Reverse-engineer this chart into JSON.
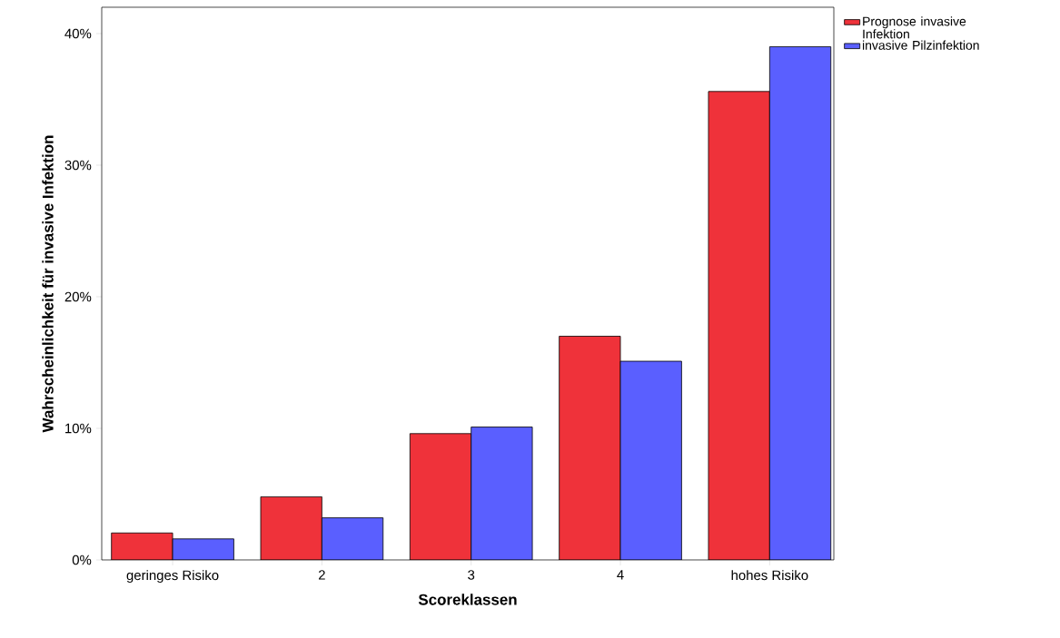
{
  "chart_data": {
    "type": "bar",
    "xlabel": "Scoreklassen",
    "ylabel": "Wahrscheinlichkeit für invasive Infektion",
    "categories": [
      "geringes Risiko",
      "2",
      "3",
      "4",
      "hohes Risiko"
    ],
    "series": [
      {
        "name": "Prognose invasive Infektion",
        "color": "#ef323a",
        "values": [
          2.05,
          4.8,
          9.6,
          17.0,
          35.6
        ]
      },
      {
        "name": "invasive Pilzinfektion",
        "color": "#5a5fff",
        "values": [
          1.6,
          3.2,
          10.1,
          15.1,
          39.0
        ]
      }
    ],
    "ylim": [
      0,
      42
    ],
    "yticks": [
      {
        "value": 0,
        "label": "0%"
      },
      {
        "value": 10,
        "label": "10%"
      },
      {
        "value": 20,
        "label": "20%"
      },
      {
        "value": 30,
        "label": "30%"
      },
      {
        "value": 40,
        "label": "40%"
      }
    ],
    "grid": false,
    "legend": "right"
  }
}
